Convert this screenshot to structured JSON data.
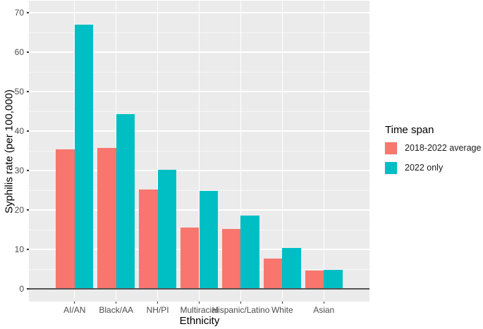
{
  "chart_data": {
    "type": "bar",
    "title": "",
    "xlabel": "Ethnicity",
    "ylabel": "Syphilis rate (per 100,000)",
    "categories": [
      "AI/AN",
      "Black/AA",
      "NH/PI",
      "Multiracial",
      "Hispanic/Latino",
      "White",
      "Asian"
    ],
    "series": [
      {
        "name": "2018-2022 average",
        "color": "#F8766D",
        "values": [
          35.4,
          35.7,
          25.1,
          15.5,
          15.1,
          7.7,
          4.6
        ]
      },
      {
        "name": "2022 only",
        "color": "#00BFC4",
        "values": [
          67.0,
          44.3,
          30.2,
          24.9,
          18.6,
          10.3,
          4.9
        ]
      }
    ],
    "legend_title": "Time span",
    "legend_position": "right",
    "ylim": [
      0,
      70
    ],
    "yticks": [
      0,
      10,
      20,
      30,
      40,
      50,
      60,
      70
    ],
    "minor_yticks": [
      5,
      15,
      25,
      35,
      45,
      55,
      65
    ],
    "grid": true,
    "panel_background": "#EBEBEB",
    "gridline_color": "#FFFFFF",
    "axis_text_color": "#4D4D4D",
    "zero_line_color": "#545454",
    "bar_group_width_fraction": 0.9
  }
}
